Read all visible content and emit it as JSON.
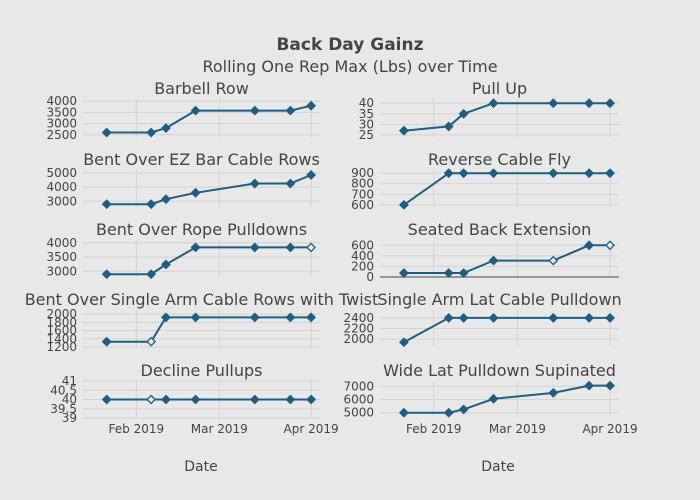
{
  "title": "Back Day Gainz",
  "subtitle": "Rolling One Rep Max (Lbs) over Time",
  "colors": {
    "background": "#e8e8e8",
    "grid": "#d2d2d2",
    "series": "#1f5d82",
    "zeroline": "#444444"
  },
  "chart_data": {
    "type": "line",
    "xlabel": "Date",
    "x_ticks": [
      "Feb 2019",
      "Mar 2019",
      "Apr 2019"
    ],
    "grid": true,
    "panels": [
      {
        "name": "Barbell Row",
        "ylim": [
          2400,
          4100
        ],
        "yticks": [
          2500,
          3000,
          3500,
          4000
        ],
        "x": [
          "2019-01-22",
          "2019-02-06",
          "2019-02-11",
          "2019-02-21",
          "2019-03-13",
          "2019-03-25",
          "2019-04-01"
        ],
        "y": [
          2600,
          2600,
          2800,
          3580,
          3580,
          3580,
          3800
        ],
        "hollow": [
          false,
          false,
          false,
          false,
          false,
          false,
          false
        ]
      },
      {
        "name": "Pull Up",
        "ylim": [
          24,
          42
        ],
        "yticks": [
          25,
          30,
          35,
          40
        ],
        "x": [
          "2019-01-22",
          "2019-02-06",
          "2019-02-11",
          "2019-02-21",
          "2019-03-13",
          "2019-03-25",
          "2019-04-01"
        ],
        "y": [
          27,
          29,
          35,
          40,
          40,
          40,
          40
        ],
        "hollow": [
          false,
          false,
          false,
          false,
          false,
          false,
          false
        ]
      },
      {
        "name": "Bent Over EZ Bar Cable Rows",
        "ylim": [
          2600,
          5200
        ],
        "yticks": [
          3000,
          4000,
          5000
        ],
        "x": [
          "2019-01-22",
          "2019-02-06",
          "2019-02-11",
          "2019-02-21",
          "2019-03-13",
          "2019-03-25",
          "2019-04-01"
        ],
        "y": [
          2800,
          2800,
          3150,
          3600,
          4250,
          4250,
          4850
        ],
        "hollow": [
          false,
          false,
          false,
          false,
          false,
          false,
          false
        ]
      },
      {
        "name": "Reverse Cable Fly",
        "ylim": [
          580,
          930
        ],
        "yticks": [
          600,
          700,
          800,
          900
        ],
        "x": [
          "2019-01-22",
          "2019-02-06",
          "2019-02-11",
          "2019-02-21",
          "2019-03-13",
          "2019-03-25",
          "2019-04-01"
        ],
        "y": [
          600,
          900,
          900,
          900,
          900,
          900,
          900
        ],
        "hollow": [
          false,
          false,
          false,
          false,
          false,
          false,
          false
        ]
      },
      {
        "name": "Bent Over Rope Pulldowns",
        "ylim": [
          2800,
          4100
        ],
        "yticks": [
          3000,
          3500,
          4000
        ],
        "x": [
          "2019-01-22",
          "2019-02-06",
          "2019-02-11",
          "2019-02-21",
          "2019-03-13",
          "2019-03-25",
          "2019-04-01"
        ],
        "y": [
          2900,
          2900,
          3240,
          3840,
          3840,
          3840,
          3840
        ],
        "hollow": [
          false,
          false,
          false,
          false,
          false,
          false,
          true
        ]
      },
      {
        "name": "Seated Back Extension",
        "ylim": [
          0,
          700
        ],
        "yticks": [
          0,
          200,
          400,
          600
        ],
        "x": [
          "2019-01-22",
          "2019-02-06",
          "2019-02-11",
          "2019-02-21",
          "2019-03-13",
          "2019-03-25",
          "2019-04-01"
        ],
        "y": [
          75,
          75,
          75,
          310,
          310,
          600,
          600
        ],
        "hollow": [
          false,
          false,
          false,
          false,
          true,
          false,
          true
        ]
      },
      {
        "name": "Bent Over Single Arm Cable Rows with Twist",
        "ylim": [
          1200,
          2100
        ],
        "yticks": [
          1200,
          1400,
          1600,
          1800,
          2000
        ],
        "x": [
          "2019-01-22",
          "2019-02-06",
          "2019-02-11",
          "2019-02-21",
          "2019-03-13",
          "2019-03-25",
          "2019-04-01"
        ],
        "y": [
          1330,
          1330,
          1920,
          1920,
          1920,
          1920,
          1920
        ],
        "hollow": [
          false,
          true,
          false,
          false,
          false,
          false,
          false
        ]
      },
      {
        "name": "Single Arm Lat Cable Pulldown",
        "ylim": [
          1850,
          2550
        ],
        "yticks": [
          2000,
          2200,
          2400
        ],
        "x": [
          "2019-01-22",
          "2019-02-06",
          "2019-02-11",
          "2019-02-21",
          "2019-03-13",
          "2019-03-25",
          "2019-04-01"
        ],
        "y": [
          1940,
          2400,
          2400,
          2400,
          2400,
          2400,
          2400
        ],
        "hollow": [
          false,
          false,
          false,
          false,
          false,
          false,
          false
        ]
      },
      {
        "name": "Decline Pullups",
        "ylim": [
          39,
          41
        ],
        "yticks": [
          39,
          39.5,
          40,
          40.5,
          41
        ],
        "x": [
          "2019-01-22",
          "2019-02-06",
          "2019-02-11",
          "2019-02-21",
          "2019-03-13",
          "2019-03-25",
          "2019-04-01"
        ],
        "y": [
          40,
          40,
          40,
          40,
          40,
          40,
          40
        ],
        "hollow": [
          false,
          true,
          false,
          false,
          false,
          false,
          false
        ]
      },
      {
        "name": "Wide Lat Pulldown Supinated",
        "ylim": [
          4600,
          7400
        ],
        "yticks": [
          5000,
          6000,
          7000
        ],
        "x": [
          "2019-01-22",
          "2019-02-06",
          "2019-02-11",
          "2019-02-21",
          "2019-03-13",
          "2019-03-25",
          "2019-04-01"
        ],
        "y": [
          5000,
          5000,
          5250,
          6050,
          6500,
          7050,
          7050
        ],
        "hollow": [
          false,
          false,
          false,
          false,
          false,
          false,
          false
        ]
      }
    ]
  }
}
